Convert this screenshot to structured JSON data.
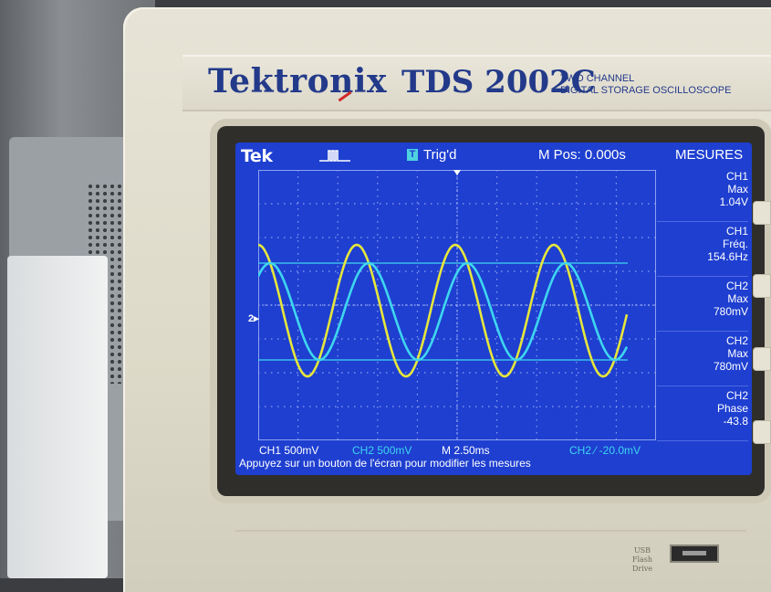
{
  "brand": {
    "logo": "Tektronix",
    "model": "TDS 2002C",
    "description_line1": "TWO CHANNEL",
    "description_line2": "DIGITAL STORAGE OSCILLOSCOPE",
    "usb_label_line1": "USB",
    "usb_label_line2": "Flash Drive"
  },
  "screen": {
    "logo": "Tek",
    "trigger_badge": "T",
    "trigger_status": "Trig'd",
    "m_pos": "M Pos: 0.000s",
    "menu_title": "MESURES",
    "measurements": [
      {
        "l1": "CH1",
        "l2": "Max",
        "l3": "1.04V"
      },
      {
        "l1": "CH1",
        "l2": "Fréq.",
        "l3": "154.6Hz"
      },
      {
        "l1": "CH2",
        "l2": "Max",
        "l3": "780mV"
      },
      {
        "l1": "CH2",
        "l2": "Max",
        "l3": "780mV"
      },
      {
        "l1": "CH2",
        "l2": "Phase",
        "l3": "-43.8"
      }
    ],
    "ch1_scale": "CH1  500mV",
    "ch2_scale": "CH2  500mV",
    "timebase": "M 2.50ms",
    "trigger_setting": "CH2 ⁄ -20.0mV",
    "hint": "Appuyez sur un bouton de l'écran pour modifier les mesures",
    "ch2_marker": "2▸",
    "colors": {
      "background": "#1e3fd0",
      "ch1": "#e6e63c",
      "ch2": "#3ed6f0",
      "grid": "#8ea2f0"
    }
  }
}
